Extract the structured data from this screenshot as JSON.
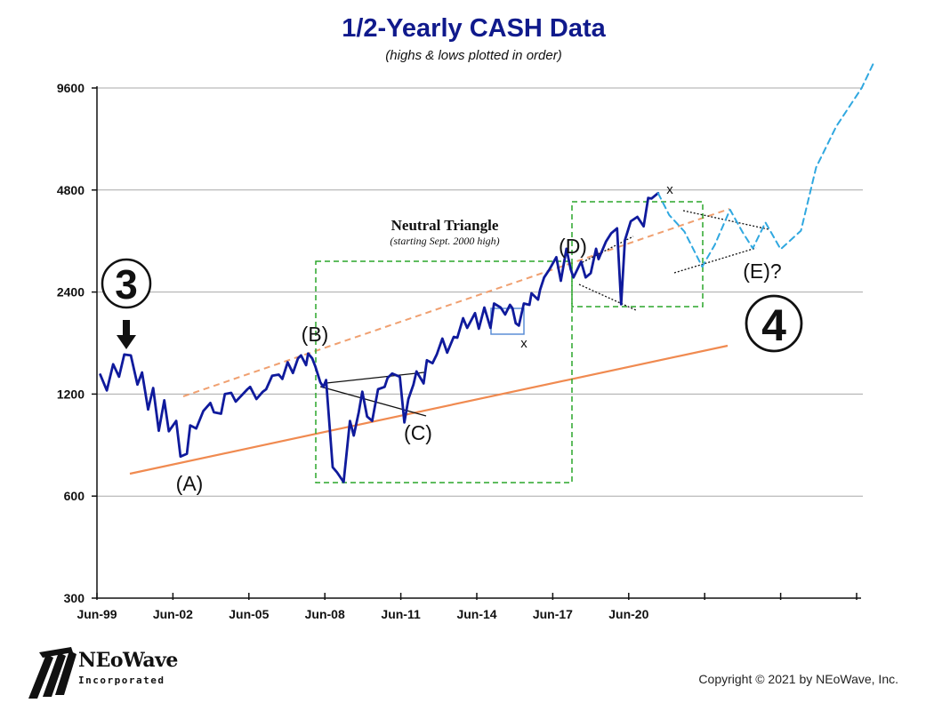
{
  "title": "1/2-Yearly CASH Data",
  "subtitle": "(highs & lows plotted in order)",
  "copyright": "Copyright © 2021 by NEoWave, Inc.",
  "logo": {
    "name": "NEoWave",
    "sub": "Incorporated"
  },
  "colors": {
    "price": "#0f1a9c",
    "grid": "#a8a8a8",
    "upper_channel": "#f0a070",
    "lower_channel": "#f08a50",
    "box": "#2aa52a",
    "projection": "#30a8e0",
    "small_box": "#5b8ed6",
    "triangle_lines": "#111111"
  },
  "chart_data": {
    "type": "line",
    "title": "1/2-Yearly CASH Data",
    "subtitle": "(highs & lows plotted in order)",
    "xlabel": "",
    "ylabel": "",
    "y_scale": "log",
    "ylim": [
      300,
      9600
    ],
    "y_ticks": [
      300,
      600,
      1200,
      2400,
      4800,
      9600
    ],
    "y_tick_labels": [
      "300",
      "600",
      "1200",
      "2400",
      "4800",
      "9600"
    ],
    "x_tick_labels": [
      "Jun-99",
      "Jun-02",
      "Jun-05",
      "Jun-08",
      "Jun-11",
      "Jun-14",
      "Jun-17",
      "Jun-20",
      "",
      "",
      ""
    ],
    "x_ticks": [
      1999.5,
      2002.5,
      2005.5,
      2008.5,
      2011.5,
      2014.5,
      2017.5,
      2020.5,
      2023.5,
      2026.5,
      2029.5
    ],
    "xlim": [
      1999.5,
      2029.5
    ],
    "grid": true,
    "series": [
      {
        "name": "",
        "x": [
          1999.63,
          1999.89,
          2000.14,
          2000.37,
          2000.58,
          2000.84,
          2001.1,
          2001.28,
          2001.52,
          2001.72,
          2001.94,
          2002.16,
          2002.34,
          2002.63,
          2002.8,
          2003.05,
          2003.18,
          2003.42,
          2003.7,
          2003.98,
          2004.12,
          2004.4,
          2004.55,
          2004.8,
          2004.98,
          2005.17,
          2005.44,
          2005.55,
          2005.8,
          2006.05,
          2006.18,
          2006.42,
          2006.68,
          2006.82,
          2007.03,
          2007.24,
          2007.44,
          2007.56,
          2007.76,
          2007.84,
          2008.0,
          2008.12,
          2008.32,
          2008.44,
          2008.55,
          2008.81,
          2008.98,
          2009.24,
          2009.49,
          2009.64,
          2009.84,
          2009.98,
          2010.17,
          2010.37,
          2010.6,
          2010.86,
          2010.98,
          2011.16,
          2011.46,
          2011.64,
          2011.8,
          2012.0,
          2012.12,
          2012.4,
          2012.53,
          2012.75,
          2012.92,
          2013.14,
          2013.33,
          2013.59,
          2013.73,
          2013.96,
          2014.12,
          2014.43,
          2014.58,
          2014.8,
          2015.04,
          2015.18,
          2015.44,
          2015.62,
          2015.81,
          2015.91,
          2016.04,
          2016.16,
          2016.36,
          2016.58,
          2016.66,
          2016.92,
          2017.0,
          2017.16,
          2017.37,
          2017.64,
          2017.82,
          2018.04,
          2018.21,
          2018.32,
          2018.62,
          2018.8,
          2019.0,
          2019.21,
          2019.31,
          2019.6,
          2019.81,
          2020.04,
          2020.2,
          2020.35,
          2020.58,
          2020.84,
          2021.09,
          2021.27,
          2021.4,
          2021.66
        ],
        "values": [
          1370,
          1230,
          1470,
          1350,
          1570,
          1560,
          1280,
          1390,
          1080,
          1250,
          935,
          1150,
          932,
          1000,
          785,
          800,
          970,
          950,
          1070,
          1130,
          1060,
          1050,
          1200,
          1210,
          1140,
          1180,
          1240,
          1260,
          1160,
          1220,
          1240,
          1360,
          1370,
          1330,
          1490,
          1385,
          1530,
          1560,
          1460,
          1580,
          1530,
          1450,
          1300,
          1260,
          1320,
          730,
          705,
          660,
          1000,
          905,
          1060,
          1220,
          1030,
          1000,
          1240,
          1260,
          1340,
          1380,
          1350,
          990,
          1160,
          1280,
          1400,
          1290,
          1510,
          1480,
          1570,
          1750,
          1590,
          1770,
          1760,
          2010,
          1880,
          2080,
          1870,
          2160,
          1880,
          2220,
          2160,
          2060,
          2200,
          2150,
          1940,
          1910,
          2220,
          2200,
          2380,
          2280,
          2440,
          2650,
          2800,
          3040,
          2590,
          3220,
          2800,
          2650,
          2950,
          2650,
          2730,
          3220,
          3000,
          3380,
          3580,
          3700,
          2210,
          3410,
          3880,
          4000,
          3750,
          4550,
          4530,
          4700
        ],
        "color": "#0f1a9c"
      },
      {
        "name": "",
        "x": [
          2021.66,
          2022.1,
          2022.7,
          2023.4,
          2023.9,
          2024.5,
          2025.0,
          2025.4,
          2025.9,
          2026.5,
          2027.3,
          2027.9,
          2028.7,
          2029.7,
          2030.2
        ],
        "values": [
          4700,
          4050,
          3620,
          2850,
          3310,
          4200,
          3600,
          3230,
          3850,
          3210,
          3640,
          5600,
          7400,
          9600,
          11500
        ],
        "color": "#30a8e0",
        "style": "dashed"
      }
    ],
    "annotations": [
      {
        "label": "(A)"
      },
      {
        "label": "(B)"
      },
      {
        "label": "(C)"
      },
      {
        "label": "(D)"
      },
      {
        "label": "(E)?"
      },
      {
        "label": "x"
      },
      {
        "label": "x"
      },
      {
        "label": "3"
      },
      {
        "label": "4"
      },
      {
        "label": "Neutral Triangle"
      },
      {
        "label": "(starting Sept. 2000 high)"
      }
    ]
  }
}
